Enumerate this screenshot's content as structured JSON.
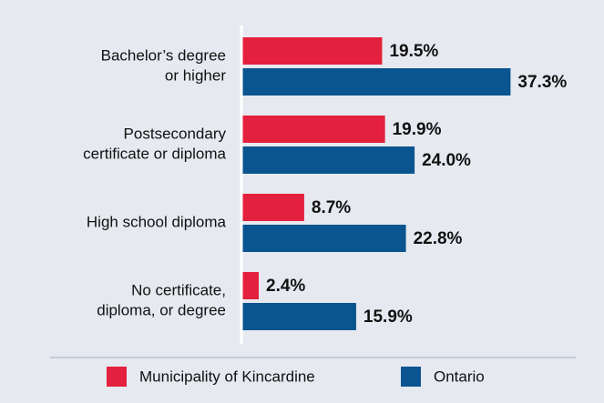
{
  "chart_data": {
    "type": "hbar",
    "categories": [
      [
        "Bachelor’s degree",
        "or higher"
      ],
      [
        "Postsecondary",
        "certificate or diploma"
      ],
      [
        "High school diploma"
      ],
      [
        "No certificate,",
        "diploma, or degree"
      ]
    ],
    "series": [
      {
        "name": "Municipality of Kincardine",
        "color": "#e3203d",
        "values": [
          19.5,
          19.9,
          8.7,
          2.4
        ],
        "value_labels": [
          "19.5%",
          "19.9%",
          "8.7%",
          "2.4%"
        ]
      },
      {
        "name": "Ontario",
        "color": "#0a5590",
        "values": [
          37.3,
          24.0,
          22.8,
          15.9
        ],
        "value_labels": [
          "37.3%",
          "24.0%",
          "22.8%",
          "15.9%"
        ]
      }
    ],
    "legend": "bottom"
  }
}
